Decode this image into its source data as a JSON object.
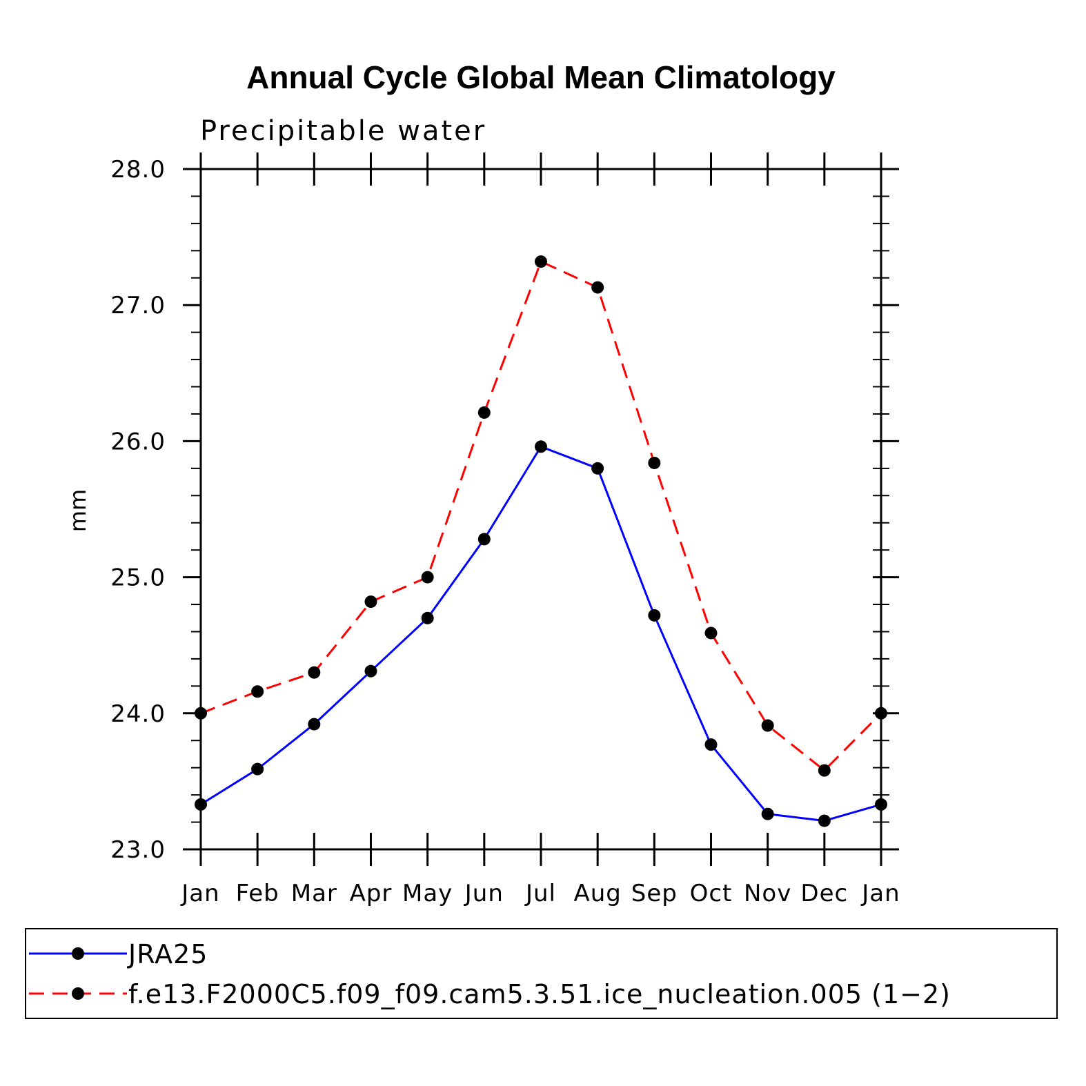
{
  "chart_data": {
    "type": "line",
    "title": "Annual Cycle Global Mean Climatology",
    "subtitle": "Precipitable water",
    "xlabel": "",
    "ylabel": "mm",
    "categories": [
      "Jan",
      "Feb",
      "Mar",
      "Apr",
      "May",
      "Jun",
      "Jul",
      "Aug",
      "Sep",
      "Oct",
      "Nov",
      "Dec",
      "Jan"
    ],
    "ylim": [
      23.0,
      28.0
    ],
    "yticks": [
      "23.0",
      "24.0",
      "25.0",
      "26.0",
      "27.0",
      "28.0"
    ],
    "ytick_values": [
      23.0,
      24.0,
      25.0,
      26.0,
      27.0,
      28.0
    ],
    "y_minor_step": 0.2,
    "grid": false,
    "legend_position": "bottom",
    "series": [
      {
        "name": "JRA25",
        "color": "#0000ff",
        "dash": "solid",
        "marker": "filled-circle",
        "values": [
          23.33,
          23.59,
          23.92,
          24.31,
          24.7,
          25.28,
          25.96,
          25.8,
          24.72,
          23.77,
          23.26,
          23.21,
          23.33
        ]
      },
      {
        "name": "f.e13.F2000C5.f09_f09.cam5.3.51.ice_nucleation.005 (1−2)",
        "color": "#ff0000",
        "dash": "dashed",
        "marker": "filled-circle",
        "values": [
          24.0,
          24.16,
          24.3,
          24.82,
          25.0,
          26.21,
          27.32,
          27.13,
          25.84,
          24.59,
          23.91,
          23.58,
          24.0
        ]
      }
    ]
  }
}
